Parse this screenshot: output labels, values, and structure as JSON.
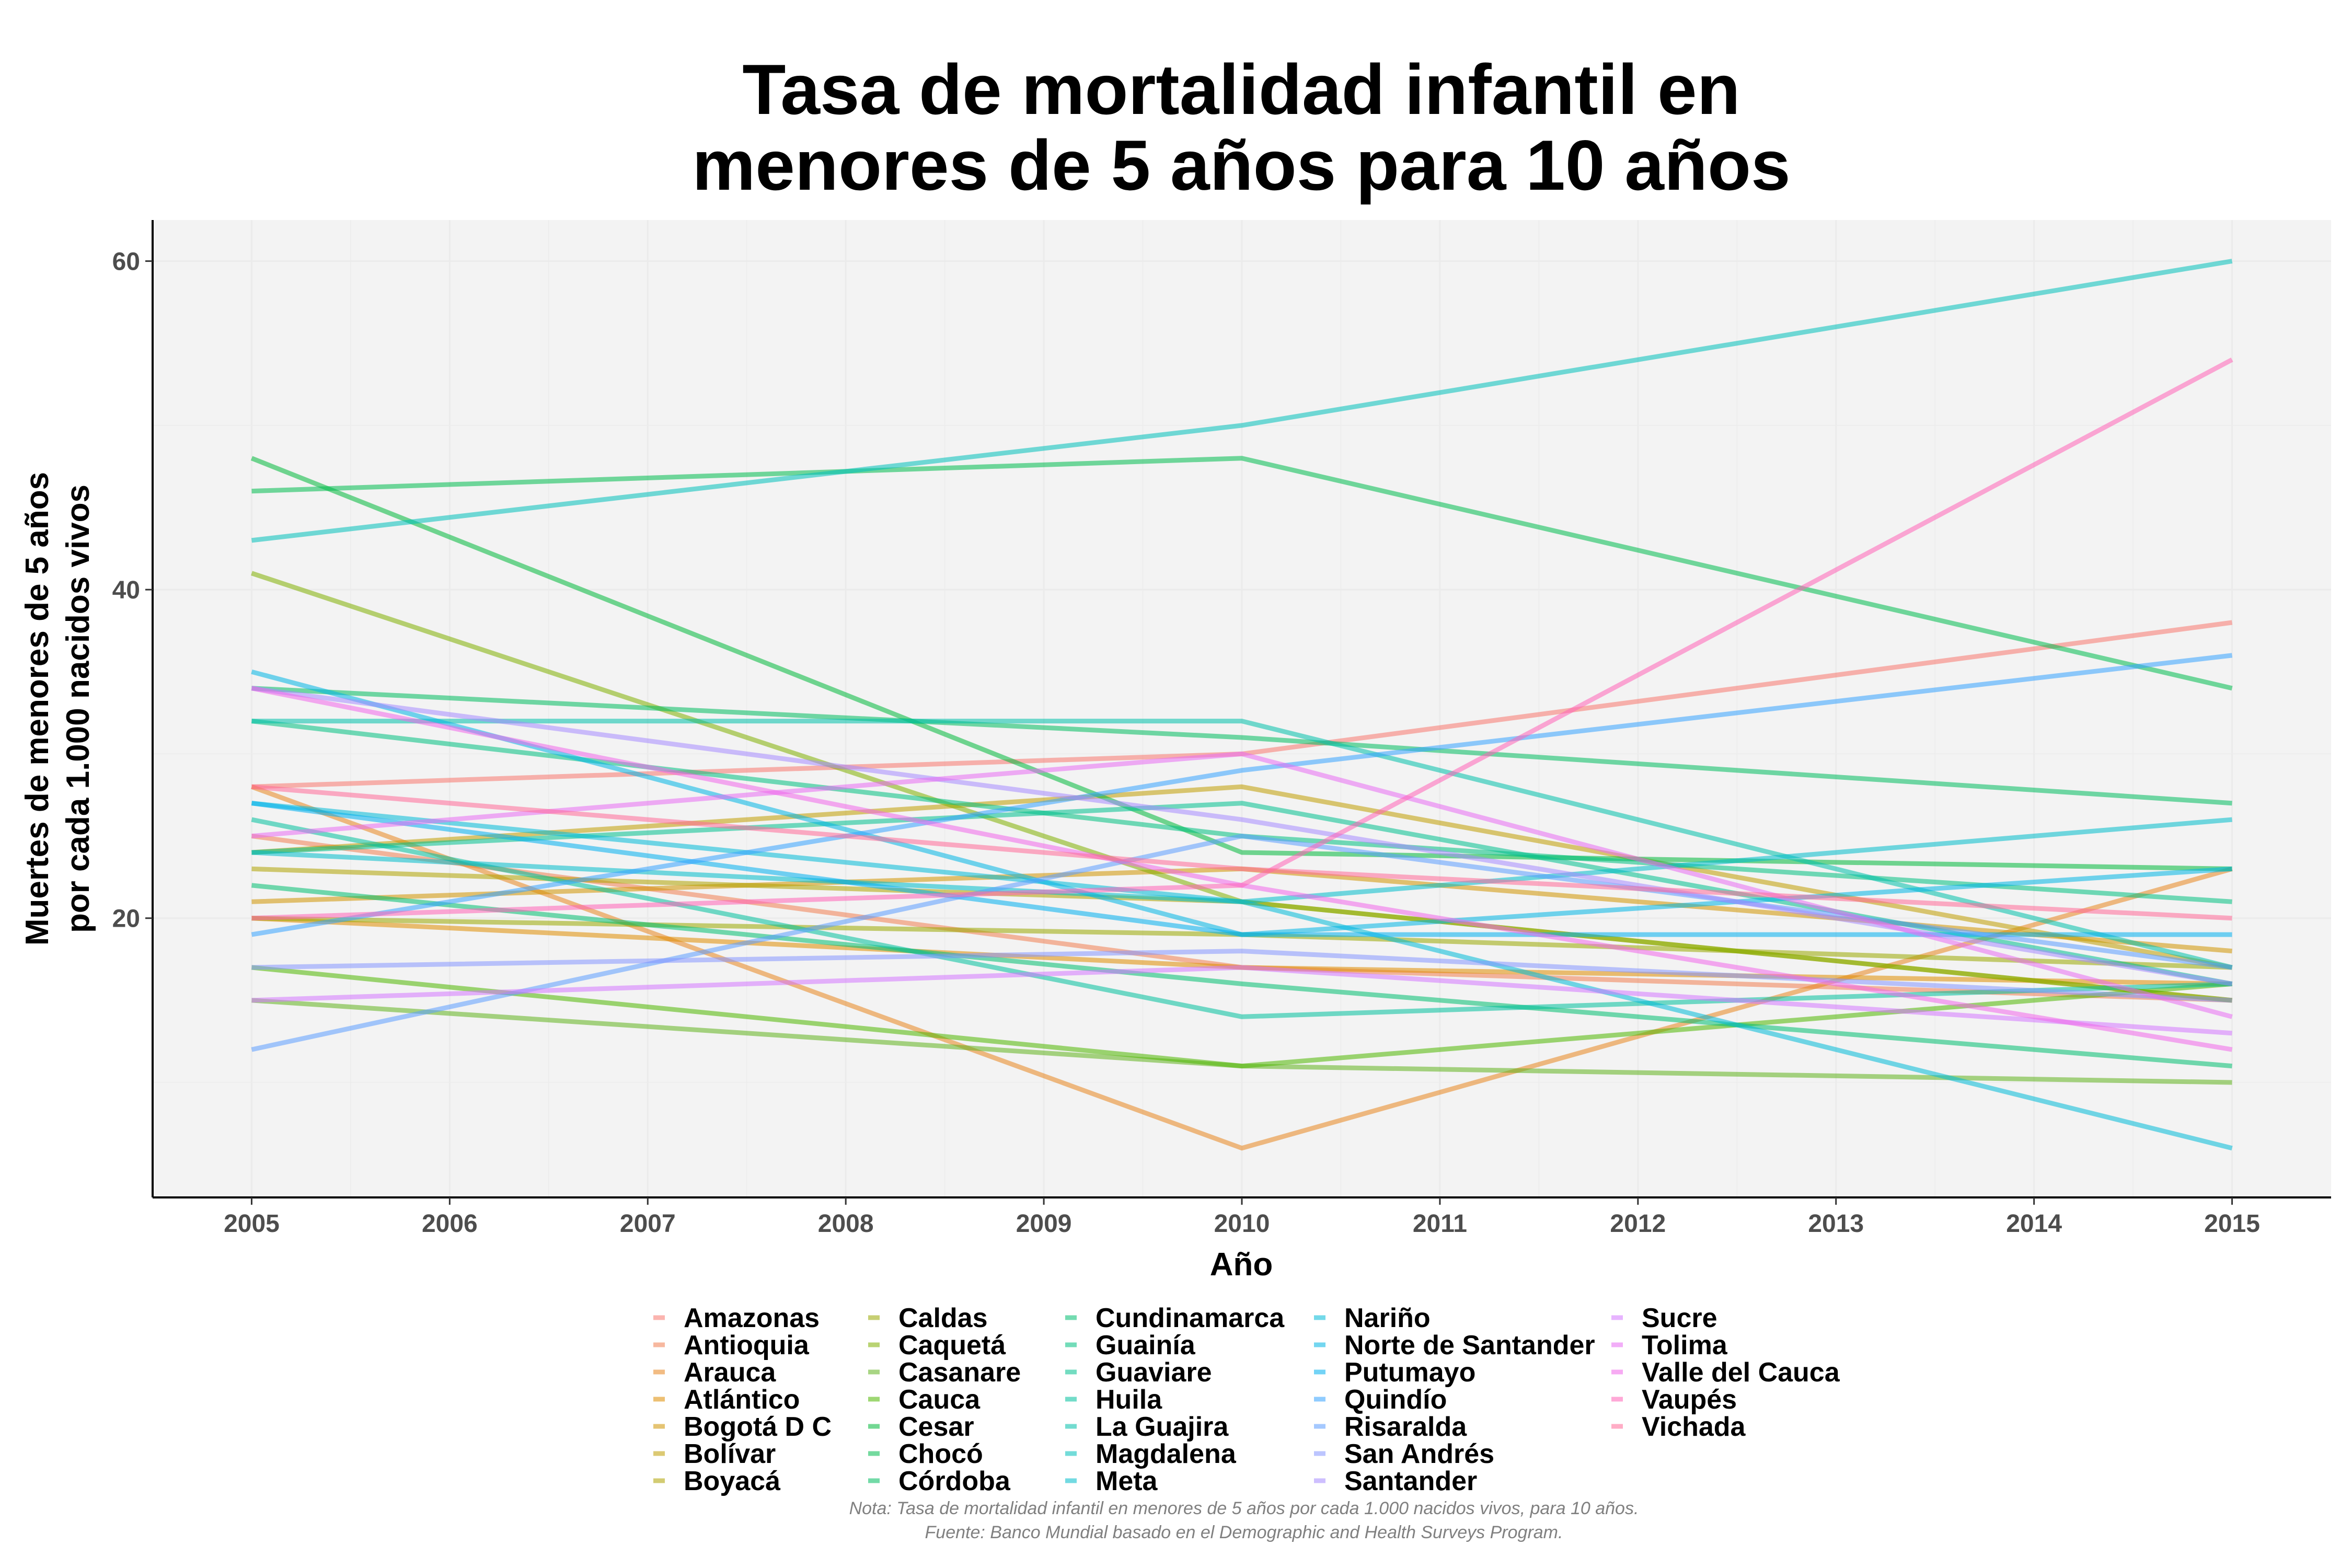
{
  "chart_data": {
    "type": "line",
    "title": [
      "Tasa de mortalidad infantil en",
      "menores de 5 años para 10 años"
    ],
    "xlabel": "Año",
    "ylabel": [
      "Muertes de menores de 5 años",
      "por cada 1.000 nacidos vivos"
    ],
    "xlim": [
      2004.5,
      2015.5
    ],
    "ylim": [
      3,
      62.5
    ],
    "xticks": [
      2005,
      2006,
      2007,
      2008,
      2009,
      2010,
      2011,
      2012,
      2013,
      2014,
      2015
    ],
    "yticks": [
      20,
      40,
      60
    ],
    "x": [
      2005,
      2010,
      2015
    ],
    "grid": true,
    "legend_position": "bottom",
    "caption": [
      "Nota: Tasa de mortalidad infantil en menores de 5 años por cada 1.000 nacidos vivos, para 10 años.",
      "Fuente: Banco Mundial basado en el Demographic and Health Surveys Program."
    ],
    "series": [
      {
        "name": "Amazonas",
        "color": "#F8766D",
        "values": [
          28,
          30,
          38
        ]
      },
      {
        "name": "Antioquia",
        "color": "#F17D50",
        "values": [
          25,
          17,
          15
        ]
      },
      {
        "name": "Arauca",
        "color": "#E7851E",
        "values": [
          28,
          6,
          23
        ]
      },
      {
        "name": "Atlántico",
        "color": "#DE8C00",
        "values": [
          20,
          17,
          16
        ]
      },
      {
        "name": "Bogotá D C",
        "color": "#D09400",
        "values": [
          21,
          23,
          18
        ]
      },
      {
        "name": "Bolívar",
        "color": "#BF9C00",
        "values": [
          24,
          28,
          17
        ]
      },
      {
        "name": "Boyacá",
        "color": "#AEA200",
        "values": [
          23,
          21,
          15
        ]
      },
      {
        "name": "Caldas",
        "color": "#99A800",
        "values": [
          20,
          19,
          17
        ]
      },
      {
        "name": "Caquetá",
        "color": "#80AE00",
        "values": [
          41,
          21,
          15
        ]
      },
      {
        "name": "Casanare",
        "color": "#60B21D",
        "values": [
          15,
          11,
          10
        ]
      },
      {
        "name": "Cauca",
        "color": "#4FB600",
        "values": [
          17,
          11,
          16
        ]
      },
      {
        "name": "Cesar",
        "color": "#00B83A",
        "values": [
          48,
          24,
          23
        ]
      },
      {
        "name": "Chocó",
        "color": "#00BB4E",
        "values": [
          46,
          48,
          34
        ]
      },
      {
        "name": "Córdoba",
        "color": "#00BC5E",
        "values": [
          34,
          31,
          27
        ]
      },
      {
        "name": "Cundinamarca",
        "color": "#00BE6F",
        "values": [
          22,
          16,
          11
        ]
      },
      {
        "name": "Guainía",
        "color": "#00BF80",
        "values": [
          32,
          25,
          21
        ]
      },
      {
        "name": "Guaviare",
        "color": "#00C08E",
        "values": [
          24,
          27,
          16
        ]
      },
      {
        "name": "Huila",
        "color": "#00C09C",
        "values": [
          26,
          14,
          16
        ]
      },
      {
        "name": "La Guajira",
        "color": "#00C0AA",
        "values": [
          32,
          32,
          17
        ]
      },
      {
        "name": "Magdalena",
        "color": "#00BFBA",
        "values": [
          43,
          50,
          60
        ]
      },
      {
        "name": "Meta",
        "color": "#00BCCA",
        "values": [
          24,
          21,
          26
        ]
      },
      {
        "name": "Nariño",
        "color": "#00B9D7",
        "values": [
          27,
          21,
          6
        ]
      },
      {
        "name": "Norte de Santander",
        "color": "#00B4E4",
        "values": [
          35,
          19,
          23
        ]
      },
      {
        "name": "Putumayo",
        "color": "#00AEEF",
        "values": [
          27,
          19,
          19
        ]
      },
      {
        "name": "Quindío",
        "color": "#35A2FF",
        "values": [
          19,
          29,
          36
        ]
      },
      {
        "name": "Risaralda",
        "color": "#5B9DFF",
        "values": [
          12,
          25,
          17
        ]
      },
      {
        "name": "San Andrés",
        "color": "#8595FF",
        "values": [
          17,
          18,
          15
        ]
      },
      {
        "name": "Santander",
        "color": "#A58AFF",
        "values": [
          34,
          26,
          16
        ]
      },
      {
        "name": "Sucre",
        "color": "#D376FF",
        "values": [
          15,
          17,
          13
        ]
      },
      {
        "name": "Tolima",
        "color": "#E76BF3",
        "values": [
          25,
          30,
          14
        ]
      },
      {
        "name": "Valle del Cauca",
        "color": "#F066EA",
        "values": [
          34,
          22,
          12
        ]
      },
      {
        "name": "Vaupés",
        "color": "#FF63B6",
        "values": [
          20,
          22,
          54
        ]
      },
      {
        "name": "Vichada",
        "color": "#FF6A98",
        "values": [
          28,
          23,
          20
        ]
      }
    ]
  }
}
